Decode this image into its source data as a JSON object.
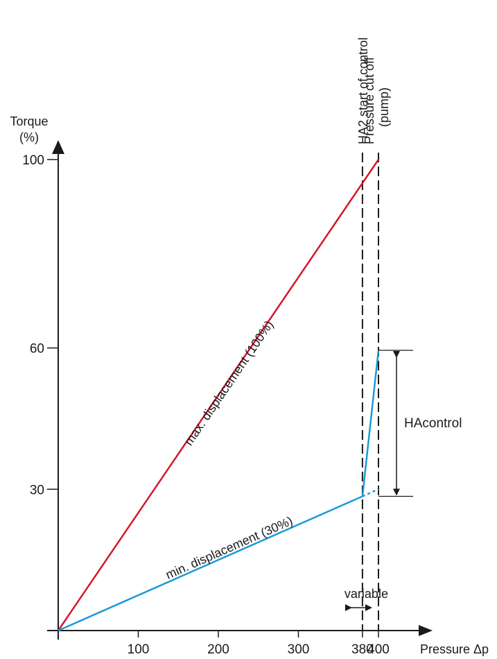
{
  "chart_data": {
    "type": "line",
    "title": "",
    "ylabel_lines": [
      "Torque",
      "(%)"
    ],
    "xlabel": "Pressure Δp",
    "xlim": [
      0,
      400
    ],
    "ylim": [
      0,
      100
    ],
    "x_ticks": [
      100,
      200,
      300,
      380,
      400
    ],
    "y_ticks": [
      30,
      60,
      100
    ],
    "series": [
      {
        "name": "max. displacement (100%)",
        "color": "#d7152b",
        "points": [
          [
            0,
            0
          ],
          [
            400,
            100
          ]
        ]
      },
      {
        "name": "min. displacement (30%)",
        "color": "#1a9ad9",
        "points": [
          [
            0,
            0
          ],
          [
            380,
            28.5
          ]
        ],
        "extension": [
          [
            380,
            28.5
          ],
          [
            400,
            30
          ]
        ],
        "ha_control": [
          [
            380,
            28.5
          ],
          [
            400,
            59.5
          ]
        ]
      }
    ],
    "vertical_lines": [
      {
        "x": 380,
        "label": "HA2 start of control"
      },
      {
        "x": 400,
        "label_lines": [
          "Pressure cut off",
          "(pump)"
        ]
      }
    ],
    "annotations": {
      "ha_range_label": "HAcontrol",
      "ha_range": [
        28.5,
        59.5
      ],
      "variable_label": "variable",
      "variable_span": [
        380,
        400
      ]
    },
    "grid": false
  }
}
